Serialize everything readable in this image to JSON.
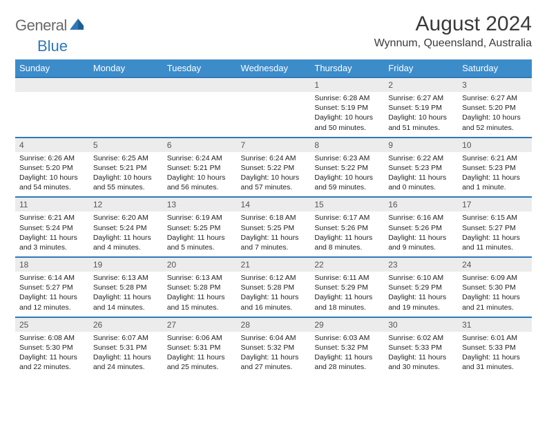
{
  "logo": {
    "gray": "General",
    "blue": "Blue"
  },
  "header": {
    "title": "August 2024",
    "location": "Wynnum, Queensland, Australia"
  },
  "styling": {
    "page_bg": "#ffffff",
    "header_bg": "#3c8cca",
    "header_text": "#ffffff",
    "daynum_bg": "#ececec",
    "row_border": "#2f78b7",
    "body_text": "#222222",
    "logo_gray": "#6a6a6a",
    "logo_blue": "#2f78b7",
    "title_fontsize": 30,
    "location_fontsize": 16,
    "dayhead_fontsize": 13,
    "daynum_fontsize": 12,
    "cell_fontsize": 10.5
  },
  "day_names": [
    "Sunday",
    "Monday",
    "Tuesday",
    "Wednesday",
    "Thursday",
    "Friday",
    "Saturday"
  ],
  "weeks": [
    [
      null,
      null,
      null,
      null,
      {
        "n": "1",
        "sr": "Sunrise: 6:28 AM",
        "ss": "Sunset: 5:19 PM",
        "d1": "Daylight: 10 hours",
        "d2": "and 50 minutes."
      },
      {
        "n": "2",
        "sr": "Sunrise: 6:27 AM",
        "ss": "Sunset: 5:19 PM",
        "d1": "Daylight: 10 hours",
        "d2": "and 51 minutes."
      },
      {
        "n": "3",
        "sr": "Sunrise: 6:27 AM",
        "ss": "Sunset: 5:20 PM",
        "d1": "Daylight: 10 hours",
        "d2": "and 52 minutes."
      }
    ],
    [
      {
        "n": "4",
        "sr": "Sunrise: 6:26 AM",
        "ss": "Sunset: 5:20 PM",
        "d1": "Daylight: 10 hours",
        "d2": "and 54 minutes."
      },
      {
        "n": "5",
        "sr": "Sunrise: 6:25 AM",
        "ss": "Sunset: 5:21 PM",
        "d1": "Daylight: 10 hours",
        "d2": "and 55 minutes."
      },
      {
        "n": "6",
        "sr": "Sunrise: 6:24 AM",
        "ss": "Sunset: 5:21 PM",
        "d1": "Daylight: 10 hours",
        "d2": "and 56 minutes."
      },
      {
        "n": "7",
        "sr": "Sunrise: 6:24 AM",
        "ss": "Sunset: 5:22 PM",
        "d1": "Daylight: 10 hours",
        "d2": "and 57 minutes."
      },
      {
        "n": "8",
        "sr": "Sunrise: 6:23 AM",
        "ss": "Sunset: 5:22 PM",
        "d1": "Daylight: 10 hours",
        "d2": "and 59 minutes."
      },
      {
        "n": "9",
        "sr": "Sunrise: 6:22 AM",
        "ss": "Sunset: 5:23 PM",
        "d1": "Daylight: 11 hours",
        "d2": "and 0 minutes."
      },
      {
        "n": "10",
        "sr": "Sunrise: 6:21 AM",
        "ss": "Sunset: 5:23 PM",
        "d1": "Daylight: 11 hours",
        "d2": "and 1 minute."
      }
    ],
    [
      {
        "n": "11",
        "sr": "Sunrise: 6:21 AM",
        "ss": "Sunset: 5:24 PM",
        "d1": "Daylight: 11 hours",
        "d2": "and 3 minutes."
      },
      {
        "n": "12",
        "sr": "Sunrise: 6:20 AM",
        "ss": "Sunset: 5:24 PM",
        "d1": "Daylight: 11 hours",
        "d2": "and 4 minutes."
      },
      {
        "n": "13",
        "sr": "Sunrise: 6:19 AM",
        "ss": "Sunset: 5:25 PM",
        "d1": "Daylight: 11 hours",
        "d2": "and 5 minutes."
      },
      {
        "n": "14",
        "sr": "Sunrise: 6:18 AM",
        "ss": "Sunset: 5:25 PM",
        "d1": "Daylight: 11 hours",
        "d2": "and 7 minutes."
      },
      {
        "n": "15",
        "sr": "Sunrise: 6:17 AM",
        "ss": "Sunset: 5:26 PM",
        "d1": "Daylight: 11 hours",
        "d2": "and 8 minutes."
      },
      {
        "n": "16",
        "sr": "Sunrise: 6:16 AM",
        "ss": "Sunset: 5:26 PM",
        "d1": "Daylight: 11 hours",
        "d2": "and 9 minutes."
      },
      {
        "n": "17",
        "sr": "Sunrise: 6:15 AM",
        "ss": "Sunset: 5:27 PM",
        "d1": "Daylight: 11 hours",
        "d2": "and 11 minutes."
      }
    ],
    [
      {
        "n": "18",
        "sr": "Sunrise: 6:14 AM",
        "ss": "Sunset: 5:27 PM",
        "d1": "Daylight: 11 hours",
        "d2": "and 12 minutes."
      },
      {
        "n": "19",
        "sr": "Sunrise: 6:13 AM",
        "ss": "Sunset: 5:28 PM",
        "d1": "Daylight: 11 hours",
        "d2": "and 14 minutes."
      },
      {
        "n": "20",
        "sr": "Sunrise: 6:13 AM",
        "ss": "Sunset: 5:28 PM",
        "d1": "Daylight: 11 hours",
        "d2": "and 15 minutes."
      },
      {
        "n": "21",
        "sr": "Sunrise: 6:12 AM",
        "ss": "Sunset: 5:28 PM",
        "d1": "Daylight: 11 hours",
        "d2": "and 16 minutes."
      },
      {
        "n": "22",
        "sr": "Sunrise: 6:11 AM",
        "ss": "Sunset: 5:29 PM",
        "d1": "Daylight: 11 hours",
        "d2": "and 18 minutes."
      },
      {
        "n": "23",
        "sr": "Sunrise: 6:10 AM",
        "ss": "Sunset: 5:29 PM",
        "d1": "Daylight: 11 hours",
        "d2": "and 19 minutes."
      },
      {
        "n": "24",
        "sr": "Sunrise: 6:09 AM",
        "ss": "Sunset: 5:30 PM",
        "d1": "Daylight: 11 hours",
        "d2": "and 21 minutes."
      }
    ],
    [
      {
        "n": "25",
        "sr": "Sunrise: 6:08 AM",
        "ss": "Sunset: 5:30 PM",
        "d1": "Daylight: 11 hours",
        "d2": "and 22 minutes."
      },
      {
        "n": "26",
        "sr": "Sunrise: 6:07 AM",
        "ss": "Sunset: 5:31 PM",
        "d1": "Daylight: 11 hours",
        "d2": "and 24 minutes."
      },
      {
        "n": "27",
        "sr": "Sunrise: 6:06 AM",
        "ss": "Sunset: 5:31 PM",
        "d1": "Daylight: 11 hours",
        "d2": "and 25 minutes."
      },
      {
        "n": "28",
        "sr": "Sunrise: 6:04 AM",
        "ss": "Sunset: 5:32 PM",
        "d1": "Daylight: 11 hours",
        "d2": "and 27 minutes."
      },
      {
        "n": "29",
        "sr": "Sunrise: 6:03 AM",
        "ss": "Sunset: 5:32 PM",
        "d1": "Daylight: 11 hours",
        "d2": "and 28 minutes."
      },
      {
        "n": "30",
        "sr": "Sunrise: 6:02 AM",
        "ss": "Sunset: 5:33 PM",
        "d1": "Daylight: 11 hours",
        "d2": "and 30 minutes."
      },
      {
        "n": "31",
        "sr": "Sunrise: 6:01 AM",
        "ss": "Sunset: 5:33 PM",
        "d1": "Daylight: 11 hours",
        "d2": "and 31 minutes."
      }
    ]
  ]
}
